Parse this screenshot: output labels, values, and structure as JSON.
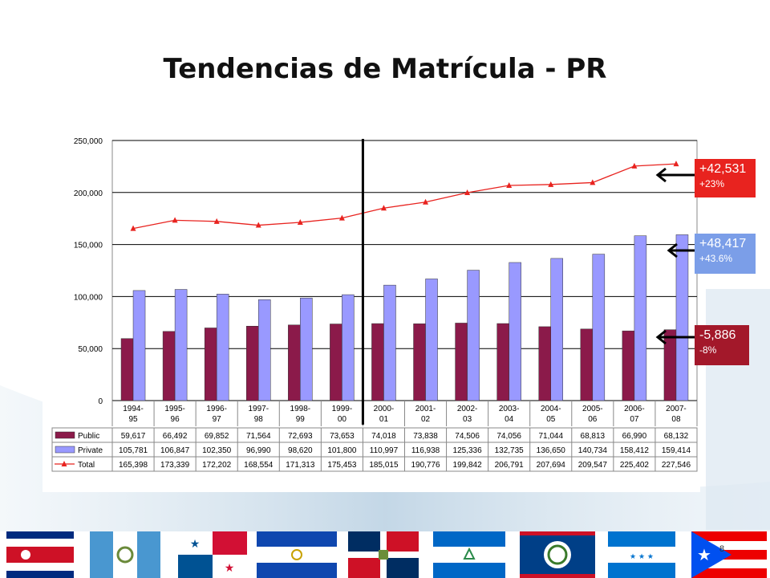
{
  "slide": {
    "title": "Tendencias de Matrícula - PR",
    "page_number": "8"
  },
  "chart_data": {
    "type": "bar",
    "categories": [
      "1994-95",
      "1995-96",
      "1996-97",
      "1997-98",
      "1998-99",
      "1999-00",
      "2000-01",
      "2001-02",
      "2002-03",
      "2003-04",
      "2004-05",
      "2005-06",
      "2006-07",
      "2007-08"
    ],
    "category_lines": [
      [
        "1994-",
        "95"
      ],
      [
        "1995-",
        "96"
      ],
      [
        "1996-",
        "97"
      ],
      [
        "1997-",
        "98"
      ],
      [
        "1998-",
        "99"
      ],
      [
        "1999-",
        "00"
      ],
      [
        "2000-",
        "01"
      ],
      [
        "2001-",
        "02"
      ],
      [
        "2002-",
        "03"
      ],
      [
        "2003-",
        "04"
      ],
      [
        "2004-",
        "05"
      ],
      [
        "2005-",
        "06"
      ],
      [
        "2006-",
        "07"
      ],
      [
        "2007-",
        "08"
      ]
    ],
    "series": [
      {
        "name": "Public",
        "type": "bar",
        "color": "#8b1a4a",
        "values": [
          59617,
          66492,
          69852,
          71564,
          72693,
          73653,
          74018,
          73838,
          74506,
          74056,
          71044,
          68813,
          66990,
          68132
        ],
        "labels": [
          "59,617",
          "66,492",
          "69,852",
          "71,564",
          "72,693",
          "73,653",
          "74,018",
          "73,838",
          "74,506",
          "74,056",
          "71,044",
          "68,813",
          "66,990",
          "68,132"
        ]
      },
      {
        "name": "Private",
        "type": "bar",
        "color": "#9999ff",
        "values": [
          105781,
          106847,
          102350,
          96990,
          98620,
          101800,
          110997,
          116938,
          125336,
          132735,
          136650,
          140734,
          158412,
          159414
        ],
        "labels": [
          "105,781",
          "106,847",
          "102,350",
          "96,990",
          "98,620",
          "101,800",
          "110,997",
          "116,938",
          "125,336",
          "132,735",
          "136,650",
          "140,734",
          "158,412",
          "159,414"
        ]
      },
      {
        "name": "Total",
        "type": "line",
        "color": "#e8231f",
        "values": [
          165398,
          173339,
          172202,
          168554,
          171313,
          175453,
          185015,
          190776,
          199842,
          206791,
          207694,
          209547,
          225402,
          227546
        ],
        "labels": [
          "165,398",
          "173,339",
          "172,202",
          "168,554",
          "171,313",
          "175,453",
          "185,015",
          "190,776",
          "199,842",
          "206,791",
          "207,694",
          "209,547",
          "225,402",
          "227,546"
        ]
      }
    ],
    "ylim": [
      0,
      250000
    ],
    "yticks": [
      0,
      50000,
      100000,
      150000,
      200000,
      250000
    ],
    "ytick_labels": [
      "0",
      "50,000",
      "100,000",
      "150,000",
      "200,000",
      "250,000"
    ],
    "grid": true,
    "divider_after_category": "1999-00"
  },
  "callouts": {
    "total": {
      "value": "+42,531",
      "pct": "+23%",
      "color": "#e8231f"
    },
    "private": {
      "value": "+48,417",
      "pct": "+43.6%",
      "color": "#7b9ee8"
    },
    "public": {
      "value": "-5,886",
      "pct": "-8%",
      "color": "#a3182a"
    }
  },
  "flags": [
    "costa-rica-flag",
    "guatemala-flag",
    "panama-flag",
    "el-salvador-flag",
    "dominican-republic-flag",
    "nicaragua-flag",
    "belize-flag",
    "honduras-flag",
    "puerto-rico-flag"
  ]
}
